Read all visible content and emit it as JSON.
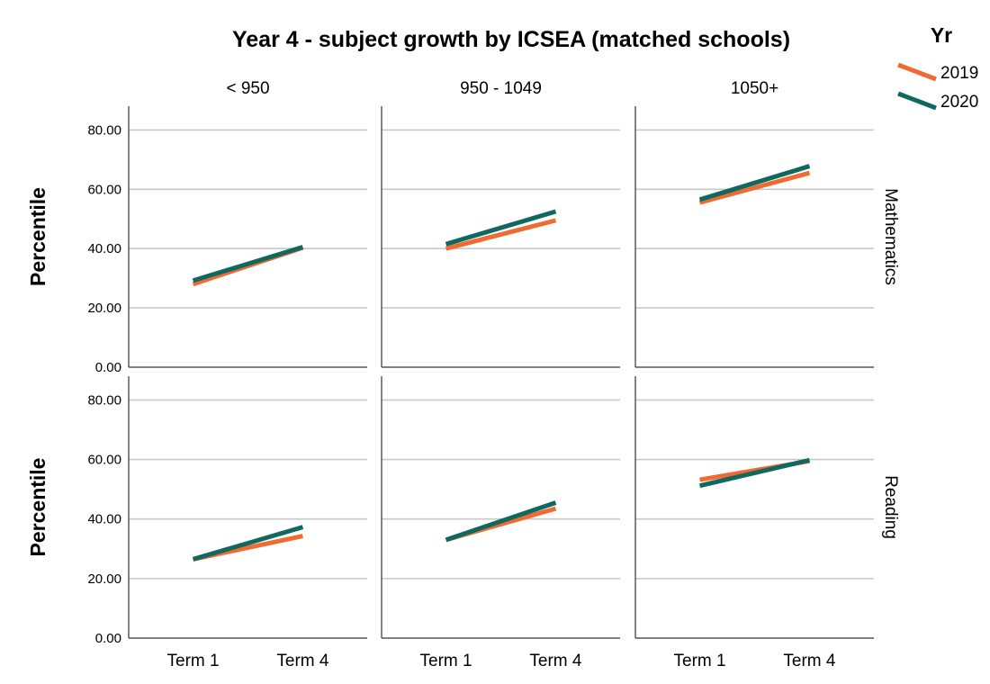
{
  "chart_data": {
    "type": "line",
    "title": "Year 4 - subject growth by ICSEA (matched schools)",
    "ylabel": "Percentile",
    "ylim": [
      0,
      88
    ],
    "yticks": [
      "0.00",
      "20.00",
      "40.00",
      "60.00",
      "80.00"
    ],
    "ytick_values": [
      0,
      20,
      40,
      60,
      80
    ],
    "x": [
      "Term 1",
      "Term 4"
    ],
    "columns": [
      "< 950",
      "950 - 1049",
      "1050+"
    ],
    "rows": [
      "Mathematics",
      "Reading"
    ],
    "grid": true,
    "legend": {
      "title": "Yr",
      "placement": "top-right",
      "entries": [
        {
          "label": "2019",
          "color": "#ef6b32"
        },
        {
          "label": "2020",
          "color": "#10685f"
        }
      ]
    },
    "panels": [
      {
        "row": "Mathematics",
        "column": "< 950",
        "series": [
          {
            "year": "2019",
            "values": [
              28,
              40.3
            ]
          },
          {
            "year": "2020",
            "values": [
              29.2,
              40.5
            ]
          }
        ]
      },
      {
        "row": "Mathematics",
        "column": "950 - 1049",
        "series": [
          {
            "year": "2019",
            "values": [
              40,
              49.5
            ]
          },
          {
            "year": "2020",
            "values": [
              41.5,
              52.5
            ]
          }
        ]
      },
      {
        "row": "Mathematics",
        "column": "1050+",
        "series": [
          {
            "year": "2019",
            "values": [
              55.5,
              65.5
            ]
          },
          {
            "year": "2020",
            "values": [
              56.5,
              67.8
            ]
          }
        ]
      },
      {
        "row": "Reading",
        "column": "< 950",
        "series": [
          {
            "year": "2019",
            "values": [
              26.5,
              34.3
            ]
          },
          {
            "year": "2020",
            "values": [
              26.5,
              37.3
            ]
          }
        ]
      },
      {
        "row": "Reading",
        "column": "950 - 1049",
        "series": [
          {
            "year": "2019",
            "values": [
              33,
              43.5
            ]
          },
          {
            "year": "2020",
            "values": [
              33,
              45.5
            ]
          }
        ]
      },
      {
        "row": "Reading",
        "column": "1050+",
        "series": [
          {
            "year": "2019",
            "values": [
              53.2,
              59.5
            ]
          },
          {
            "year": "2020",
            "values": [
              51.2,
              59.8
            ]
          }
        ]
      }
    ]
  }
}
